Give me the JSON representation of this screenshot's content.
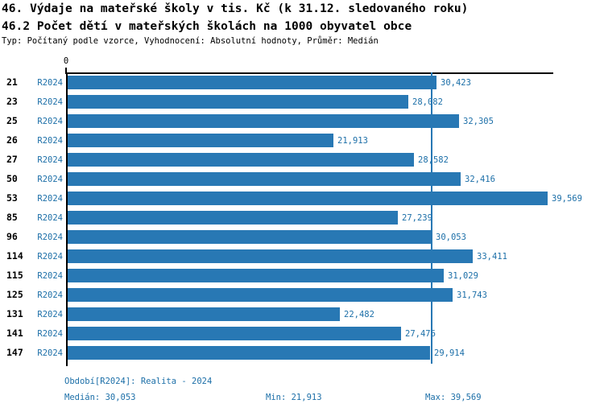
{
  "header": {
    "title1": "46. Výdaje na mateřské školy v tis. Kč (k 31.12. sledovaného roku)",
    "title2": "46.2 Počet dětí v mateřských školách na 1000 obyvatel obce",
    "subtitle": "Typ: Počítaný podle vzorce, Vyhodnocení: Absolutní hodnoty, Průměr: Medián"
  },
  "colors": {
    "bar": "#2878B4",
    "accent_text": "#1C6FA8",
    "axis": "#000000"
  },
  "chart_data": {
    "type": "bar",
    "orientation": "horizontal",
    "title": "46. Výdaje na mateřské školy v tis. Kč (k 31.12. sledovaného roku)",
    "subtitle": "46.2 Počet dětí v mateřských školách na 1000 obyvatel obce",
    "categories": [
      "21",
      "23",
      "25",
      "26",
      "27",
      "50",
      "53",
      "85",
      "96",
      "114",
      "115",
      "125",
      "131",
      "141",
      "147"
    ],
    "series_label": "R2024",
    "values": [
      30423,
      28082,
      32305,
      21913,
      28582,
      32416,
      39569,
      27239,
      30053,
      33411,
      31029,
      31743,
      22482,
      27476,
      29914
    ],
    "value_labels": [
      "30,423",
      "28,082",
      "32,305",
      "21,913",
      "28,582",
      "32,416",
      "39,569",
      "27,239",
      "30,053",
      "33,411",
      "31,029",
      "31,743",
      "22,482",
      "27,476",
      "29,914"
    ],
    "x_tick_zero": "0",
    "xlim": [
      0,
      40200
    ],
    "median_value": 30053,
    "grid": false,
    "legend_position": "none"
  },
  "footer": {
    "period": "Období[R2024]: Realita - 2024",
    "median": "Medián: 30,053",
    "min": "Min: 21,913",
    "max": "Max: 39,569"
  }
}
